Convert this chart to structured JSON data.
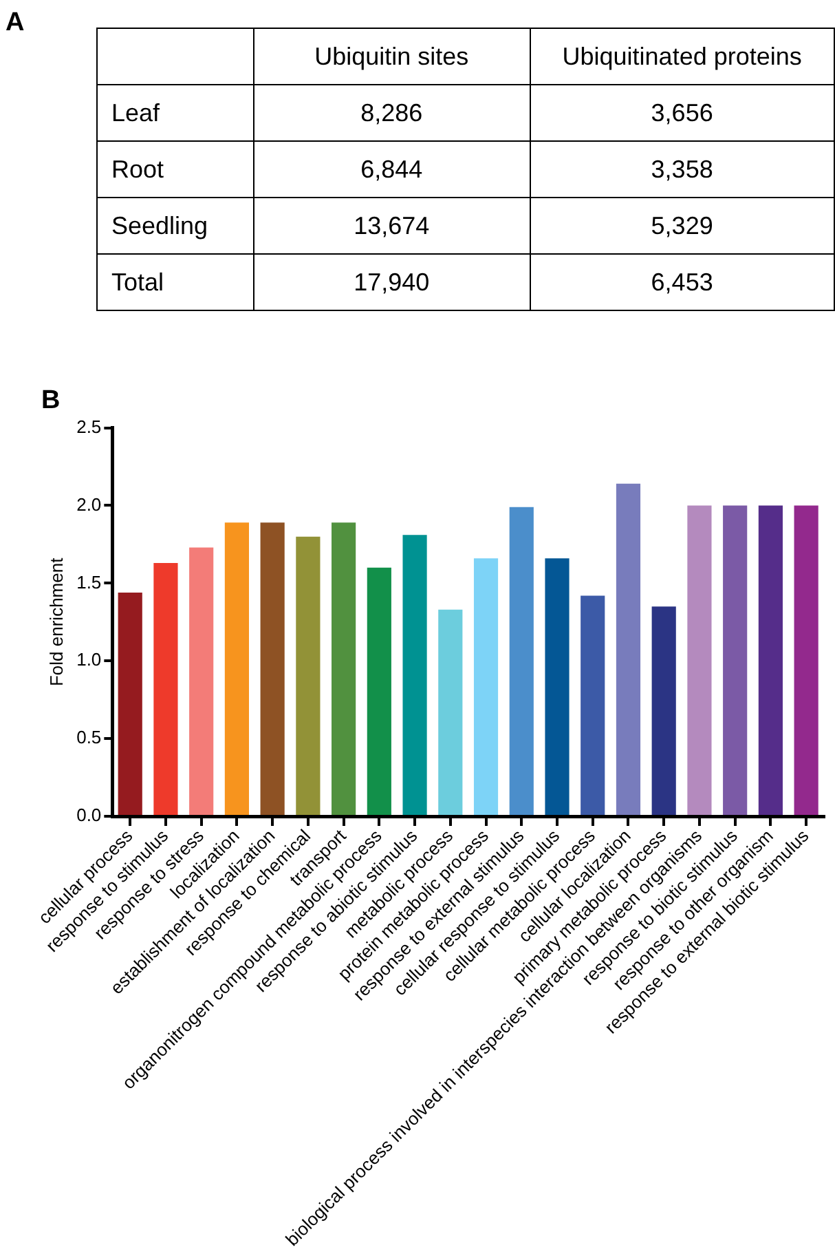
{
  "chart_data": [
    {
      "type": "other",
      "title": "A",
      "categories": [
        "Leaf",
        "Root",
        "Seedling",
        "Total"
      ],
      "data_labels": true,
      "series": [
        {
          "name": "Ubiquitin sites",
          "values": [
            8286,
            6844,
            13674,
            17940
          ],
          "value_labels": [
            "8,286",
            "6,844",
            "13,674",
            "17,940"
          ]
        },
        {
          "name": "Ubiquitinated proteins",
          "values": [
            3656,
            3358,
            5329,
            6453
          ],
          "value_labels": [
            "3,656",
            "3,358",
            "5,329",
            "6,453"
          ]
        }
      ]
    },
    {
      "type": "bar",
      "title": "B",
      "ylabel": "Fold enrichment",
      "categories": [
        "cellular process",
        "response to stimulus",
        "response to stress",
        "localization",
        "establishment of localization",
        "response to chemical",
        "transport",
        "organonitrogen compound metabolic process",
        "response to abiotic stimulus",
        "metabolic process",
        "protein metabolic process",
        "response to external stimulus",
        "cellular response to stimulus",
        "cellular metabolic process",
        "cellular localization",
        "primary metabolic process",
        "biological process involved in interspecies interaction between organisms",
        "response to biotic stimulus",
        "response to other organism",
        "response to external biotic stimulus"
      ],
      "values": [
        1.44,
        1.63,
        1.73,
        1.89,
        1.89,
        1.8,
        1.89,
        1.6,
        1.81,
        1.33,
        1.66,
        1.99,
        1.66,
        1.42,
        2.14,
        1.35,
        2.0,
        2.0,
        2.0,
        2.0
      ],
      "colors": [
        "#951b1f",
        "#ee3a2b",
        "#f37c78",
        "#f7941e",
        "#8e5224",
        "#929237",
        "#51913f",
        "#12904a",
        "#009292",
        "#6ccddd",
        "#7dd3f7",
        "#4b8ecb",
        "#045795",
        "#3c5aa7",
        "#787cbc",
        "#2b3484",
        "#b48abe",
        "#7b5aa6",
        "#552d8a",
        "#93298d"
      ],
      "ylim": [
        0,
        2.5
      ],
      "yticks": [
        {
          "value": 0,
          "label": "0.0"
        },
        0.5,
        {
          "value": 1,
          "label": "1.0"
        },
        1.5,
        {
          "value": 2,
          "label": "2.0"
        },
        2.5
      ],
      "grid": false,
      "legend": false
    }
  ]
}
